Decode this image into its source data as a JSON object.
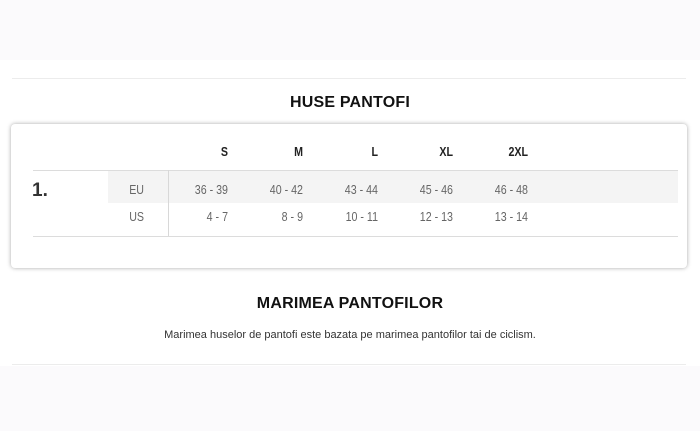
{
  "section_title": "HUSE PANTOFI",
  "table": {
    "row_number": "1.",
    "sizes": [
      "S",
      "M",
      "L",
      "XL",
      "2XL"
    ],
    "rows": [
      {
        "label": "EU",
        "values": [
          "36 - 39",
          "40 - 42",
          "43 - 44",
          "45 - 46",
          "46 - 48"
        ]
      },
      {
        "label": "US",
        "values": [
          "4 - 7",
          "8 - 9",
          "10 - 11",
          "12 - 13",
          "13 - 14"
        ]
      }
    ]
  },
  "info": {
    "title": "MARIMEA PANTOFILOR",
    "description": "Marimea huselor de pantofi este bazata pe marimea pantofilor tai de ciclism."
  }
}
